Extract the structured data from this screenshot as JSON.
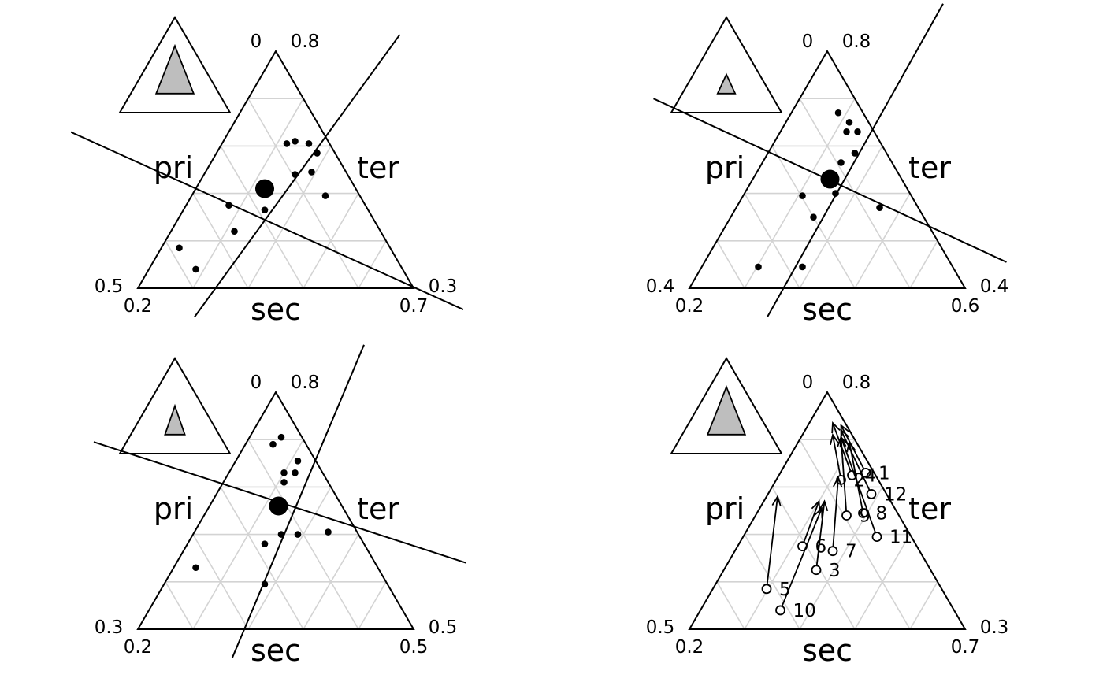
{
  "chart_data": [
    {
      "type": "scatter",
      "panel": "top-left",
      "corner_labels": {
        "left": "pri",
        "right": "ter",
        "bottom": "sec"
      },
      "tick_labels": {
        "top_left": "0",
        "top_right": "0.8",
        "left_upper": "0.5",
        "left_lower": "0.2",
        "right_upper": "0.3",
        "right_lower": "0.7"
      },
      "inset_zoom_triangle": {
        "apex_y": 0.2,
        "base_y": 0.7,
        "half_width": 0.34
      },
      "center_point": [
        0.46,
        0.42
      ],
      "axis_lines": [
        {
          "from": [
            -0.53,
            0.81
          ],
          "to": [
            1.18,
            -0.09
          ]
        },
        {
          "from": [
            0.15,
            -0.21
          ],
          "to": [
            0.95,
            1.07
          ]
        }
      ],
      "points": [
        [
          0.54,
          0.61
        ],
        [
          0.57,
          0.62
        ],
        [
          0.62,
          0.61
        ],
        [
          0.65,
          0.57
        ],
        [
          0.57,
          0.48
        ],
        [
          0.63,
          0.49
        ],
        [
          0.68,
          0.39
        ],
        [
          0.46,
          0.33
        ],
        [
          0.33,
          0.35
        ],
        [
          0.35,
          0.24
        ],
        [
          0.15,
          0.17
        ],
        [
          0.21,
          0.08
        ]
      ]
    },
    {
      "type": "scatter",
      "panel": "top-right",
      "corner_labels": {
        "left": "pri",
        "right": "ter",
        "bottom": "sec"
      },
      "tick_labels": {
        "top_left": "0",
        "top_right": "0.8",
        "left_upper": "0.4",
        "left_lower": "0.2",
        "right_upper": "0.4",
        "right_lower": "0.6"
      },
      "inset_zoom_triangle": {
        "apex_y": 0.2,
        "base_y": 0.4,
        "half_width": 0.16
      },
      "center_point": [
        0.51,
        0.46
      ],
      "axis_lines": [
        {
          "from": [
            -0.13,
            0.8
          ],
          "to": [
            1.15,
            0.11
          ]
        },
        {
          "from": [
            0.24,
            -0.21
          ],
          "to": [
            0.92,
            1.2
          ]
        }
      ],
      "points": [
        [
          0.54,
          0.74
        ],
        [
          0.57,
          0.66
        ],
        [
          0.58,
          0.7
        ],
        [
          0.61,
          0.66
        ],
        [
          0.6,
          0.57
        ],
        [
          0.55,
          0.53
        ],
        [
          0.53,
          0.4
        ],
        [
          0.41,
          0.39
        ],
        [
          0.45,
          0.3
        ],
        [
          0.69,
          0.34
        ],
        [
          0.25,
          0.09
        ],
        [
          0.41,
          0.09
        ]
      ]
    },
    {
      "type": "scatter",
      "panel": "bottom-left",
      "corner_labels": {
        "left": "pri",
        "right": "ter",
        "bottom": "sec"
      },
      "tick_labels": {
        "top_left": "0",
        "top_right": "0.8",
        "left_upper": "0.3",
        "left_lower": "0.2",
        "right_upper": "0.5",
        "right_lower": "0.5"
      },
      "inset_zoom_triangle": {
        "apex_y": 0.2,
        "base_y": 0.5,
        "half_width": 0.18
      },
      "center_point": [
        0.51,
        0.52
      ],
      "axis_lines": [
        {
          "from": [
            -0.16,
            0.79
          ],
          "to": [
            1.19,
            0.28
          ]
        },
        {
          "from": [
            0.31,
            -0.21
          ],
          "to": [
            0.82,
            1.2
          ]
        }
      ],
      "points": [
        [
          0.52,
          0.81
        ],
        [
          0.49,
          0.78
        ],
        [
          0.58,
          0.71
        ],
        [
          0.53,
          0.66
        ],
        [
          0.57,
          0.66
        ],
        [
          0.53,
          0.62
        ],
        [
          0.52,
          0.4
        ],
        [
          0.58,
          0.4
        ],
        [
          0.46,
          0.36
        ],
        [
          0.69,
          0.41
        ],
        [
          0.21,
          0.26
        ],
        [
          0.46,
          0.19
        ]
      ]
    },
    {
      "type": "scatter",
      "panel": "bottom-right",
      "corner_labels": {
        "left": "pri",
        "right": "ter",
        "bottom": "sec"
      },
      "tick_labels": {
        "top_left": "0",
        "top_right": "0.8",
        "left_upper": "0.5",
        "left_lower": "0.2",
        "right_upper": "0.3",
        "right_lower": "0.7"
      },
      "inset_zoom_triangle": {
        "apex_y": 0.2,
        "base_y": 0.7,
        "half_width": 0.34
      },
      "arrow_head": [
        0.51,
        0.87
      ],
      "points": [
        {
          "label": "1",
          "xy": [
            0.64,
            0.66
          ],
          "arrow_to": [
            0.55,
            0.86
          ]
        },
        {
          "label": "2",
          "xy": [
            0.55,
            0.63
          ],
          "arrow_to": [
            0.52,
            0.82
          ]
        },
        {
          "label": "3",
          "xy": [
            0.46,
            0.25
          ],
          "arrow_to": [
            0.49,
            0.54
          ]
        },
        {
          "label": "4",
          "xy": [
            0.59,
            0.65
          ],
          "arrow_to": [
            0.52,
            0.87
          ]
        },
        {
          "label": "5",
          "xy": [
            0.28,
            0.17
          ],
          "arrow_to": [
            0.32,
            0.56
          ]
        },
        {
          "label": "6",
          "xy": [
            0.41,
            0.35
          ],
          "arrow_to": [
            0.47,
            0.54
          ]
        },
        {
          "label": "7",
          "xy": [
            0.52,
            0.33
          ],
          "arrow_to": [
            0.54,
            0.64
          ]
        },
        {
          "label": "8",
          "xy": [
            0.63,
            0.49
          ],
          "arrow_to": [
            0.58,
            0.79
          ]
        },
        {
          "label": "9",
          "xy": [
            0.57,
            0.48
          ],
          "arrow_to": [
            0.55,
            0.81
          ]
        },
        {
          "label": "10",
          "xy": [
            0.33,
            0.08
          ],
          "arrow_to": [
            0.48,
            0.51
          ]
        },
        {
          "label": "11",
          "xy": [
            0.68,
            0.39
          ],
          "arrow_to": [
            0.55,
            0.81
          ]
        },
        {
          "label": "12",
          "xy": [
            0.66,
            0.57
          ],
          "arrow_to": [
            0.55,
            0.84
          ]
        }
      ]
    }
  ]
}
